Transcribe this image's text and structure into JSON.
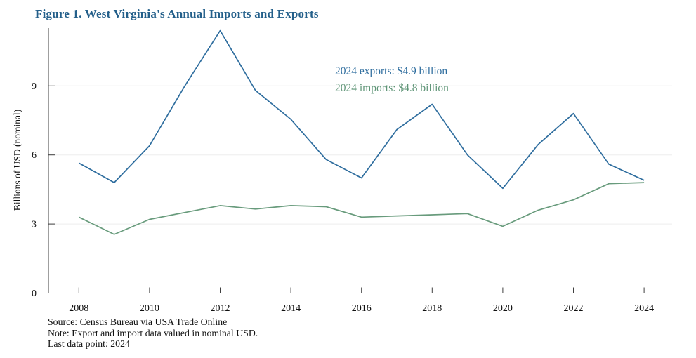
{
  "figure": {
    "title": "Figure 1. West Virginia's Annual Imports and Exports"
  },
  "annotations": {
    "exports": "2024 exports: $4.9 billion",
    "imports": "2024 imports: $4.8 billion"
  },
  "notes": {
    "source": "Source: Census Bureau via USA Trade Online",
    "note": "Note: Export and import data valued in nominal USD.",
    "last": "Last data point: 2024"
  },
  "colors": {
    "exports_line": "#2e6d9e",
    "imports_line": "#689b7c",
    "title_text": "#235f8a",
    "grid": "#ededed",
    "axis": "#3f3f3f",
    "tick_text": "#111111"
  },
  "chart_data": {
    "type": "line",
    "title": "Figure 1. West Virginia's Annual Imports and Exports",
    "xlabel": "",
    "ylabel": "Billions of USD (nominal)",
    "x": [
      2008,
      2009,
      2010,
      2011,
      2012,
      2013,
      2014,
      2015,
      2016,
      2017,
      2018,
      2019,
      2020,
      2021,
      2022,
      2023,
      2024
    ],
    "series": [
      {
        "name": "Exports",
        "color": "#2e6d9e",
        "values": [
          5.65,
          4.8,
          6.4,
          9.0,
          11.4,
          8.8,
          7.55,
          5.8,
          5.0,
          7.1,
          8.2,
          6.0,
          4.55,
          6.45,
          7.8,
          5.6,
          4.9
        ]
      },
      {
        "name": "Imports",
        "color": "#689b7c",
        "values": [
          3.3,
          2.55,
          3.2,
          3.5,
          3.8,
          3.65,
          3.8,
          3.75,
          3.3,
          3.35,
          3.4,
          3.45,
          2.9,
          3.6,
          4.05,
          4.75,
          4.8
        ]
      }
    ],
    "ylim": [
      0,
      11.6
    ],
    "yticks": [
      0,
      3,
      6,
      9
    ],
    "xticks": [
      2008,
      2010,
      2012,
      2014,
      2016,
      2018,
      2020,
      2022,
      2024
    ],
    "grid": "horizontal gridlines at y = 3, 6, 9",
    "legend": "none; series identified by colored text annotations",
    "annotations": [
      "2024 exports: $4.9 billion",
      "2024 imports: $4.8 billion"
    ]
  }
}
